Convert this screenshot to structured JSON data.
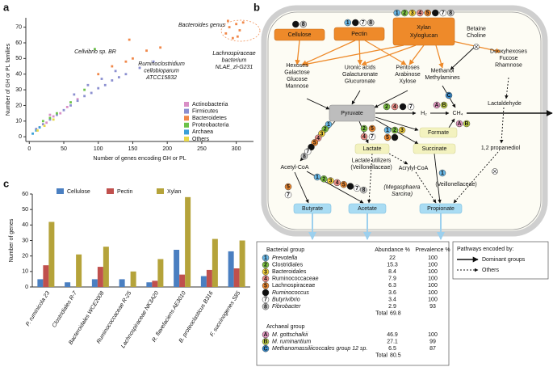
{
  "chart_data": [
    {
      "type": "scatter",
      "label": "a",
      "xlabel": "Number of genes encoding GH or PL",
      "ylabel": "Number of GH or PL families",
      "xlim": [
        -5,
        325
      ],
      "ylim": [
        -3,
        76
      ],
      "xticks": [
        0,
        50,
        100,
        150,
        200,
        250,
        300
      ],
      "yticks": [
        0,
        10,
        20,
        30,
        40,
        50,
        60,
        70
      ],
      "legend": "lower right",
      "series": [
        {
          "name": "Actinobacteria",
          "color": "#d98fc6",
          "x": [
            15,
            25,
            35,
            45,
            55,
            70,
            30
          ],
          "values": [
            6,
            9,
            13,
            15,
            19,
            24,
            14
          ]
        },
        {
          "name": "Firmicutes",
          "color": "#8b8fd0",
          "x": [
            10,
            20,
            30,
            40,
            50,
            60,
            70,
            80,
            90,
            100,
            110,
            120,
            130,
            140,
            160,
            180,
            65,
            85,
            105,
            125
          ],
          "values": [
            5,
            8,
            11,
            14,
            17,
            20,
            23,
            26,
            28,
            31,
            33,
            36,
            38,
            40,
            44,
            48,
            27,
            33,
            37,
            42
          ]
        },
        {
          "name": "Bacteroidetes",
          "color": "#f0884a",
          "x": [
            100,
            120,
            140,
            150,
            170,
            190,
            145,
            285,
            290,
            295,
            300,
            305,
            310,
            288,
            302
          ],
          "values": [
            40,
            45,
            48,
            50,
            55,
            57,
            62,
            66,
            70,
            63,
            72,
            68,
            73,
            74,
            64
          ]
        },
        {
          "name": "Proteobacteria",
          "color": "#6cc24a",
          "x": [
            20,
            30,
            40,
            60,
            80,
            95
          ],
          "values": [
            10,
            12,
            15,
            22,
            30,
            56
          ]
        },
        {
          "name": "Archaea",
          "color": "#3aa0d8",
          "x": [
            5,
            10,
            15
          ],
          "values": [
            2,
            4,
            6
          ]
        },
        {
          "name": "Others",
          "color": "#e8d84a",
          "x": [
            12,
            22,
            35
          ],
          "values": [
            4,
            7,
            11
          ]
        }
      ],
      "annotations": [
        {
          "lines": [
            "Bacteroides genus"
          ],
          "color": "#f0884a"
        },
        {
          "lines": [
            "Cellvibrio sp. BR"
          ],
          "color": "#6cc24a"
        },
        {
          "lines": [
            "Ruminoclostridium",
            "cellobioparum",
            "ATCC15832"
          ],
          "color": "#6cc24a"
        },
        {
          "lines": [
            "Lachnospiraceae",
            "bacterium",
            "NLAE_zl-G231"
          ],
          "color": "#3aa0d8"
        }
      ]
    },
    {
      "type": "bar",
      "label": "c",
      "ylabel": "Number of genes",
      "categories": [
        "P. ruminicola 23",
        "Clostridiales R-7",
        "Bacteroidales WCE2008",
        "Ruminococcaceae R-25",
        "Lachnospiraceae NK3A20",
        "R. flavefaciens AE3010",
        "B. proteoclasticus B316",
        "F. succinogenes S85"
      ],
      "series": [
        {
          "name": "Cellulose",
          "color": "#4a7fc1",
          "values": [
            5,
            3,
            5,
            5,
            3,
            24,
            7,
            23
          ]
        },
        {
          "name": "Pectin",
          "color": "#c0504d",
          "values": [
            14,
            0,
            13,
            0,
            4,
            8,
            11,
            12
          ]
        },
        {
          "name": "Xylan",
          "color": "#b5a33a",
          "values": [
            42,
            21,
            26,
            10,
            18,
            58,
            31,
            30
          ]
        }
      ],
      "ylim": [
        0,
        60
      ],
      "yticks": [
        0,
        10,
        20,
        30,
        40,
        50,
        60
      ],
      "legend": "top"
    }
  ],
  "diagram": {
    "label": "b",
    "badge_colors": {
      "1": "#6ab9e8",
      "2": "#7cc242",
      "3": "#f2d03b",
      "4": "#ef8f88",
      "5": "#f08a30",
      "6": "#111111",
      "7": "#ffffff",
      "8": "#c8c8c8",
      "A": "#e79ac4",
      "B": "#c8d84a",
      "C": "#3b8fd0"
    },
    "nodes": [
      {
        "lines": [
          "Cellulose"
        ],
        "badges": [
          "6",
          "8"
        ]
      },
      {
        "lines": [
          "Pectin"
        ],
        "badges": [
          "1",
          "6",
          "7",
          "8"
        ]
      },
      {
        "lines": [
          "Xylan",
          "Xyloglucan"
        ],
        "badges": [
          "1",
          "2",
          "3",
          "4",
          "5",
          "6",
          "7",
          "8"
        ]
      },
      {
        "lines": [
          "Betaine",
          "Choline"
        ]
      },
      {
        "lines": [
          "Hexoses",
          "Galactose",
          "Glucose",
          "Mannose"
        ]
      },
      {
        "lines": [
          "Uronic acids",
          "Galacturonate",
          "Glucuronate"
        ]
      },
      {
        "lines": [
          "Pentoses",
          "Arabinose",
          "Xylose"
        ]
      },
      {
        "lines": [
          "Methanol",
          "Methylamines"
        ]
      },
      {
        "lines": [
          "Deoxyhexoses",
          "Fucose",
          "Rhamnose"
        ]
      },
      {
        "lines": [
          "Pyruvate"
        ]
      },
      {
        "lines": [
          "H₂"
        ]
      },
      {
        "lines": [
          "CH₄"
        ]
      },
      {
        "lines": [
          "Formate"
        ]
      },
      {
        "lines": [
          "Lactate"
        ]
      },
      {
        "lines": [
          "Succinate"
        ]
      },
      {
        "lines": [
          "Lactaldehyde"
        ]
      },
      {
        "lines": [
          "1,2 propanediol"
        ]
      },
      {
        "lines": [
          "Acetyl-CoA"
        ]
      },
      {
        "lines": [
          "Lactate utilizers",
          "(Veillonellaceae)"
        ]
      },
      {
        "lines": [
          "Acrylyl-CoA"
        ]
      },
      {
        "lines": [
          "(Veillonellaceae)"
        ]
      },
      {
        "lines": [
          "(Megasphaera",
          "Sarcina)"
        ]
      },
      {
        "lines": [
          "Butyrate"
        ]
      },
      {
        "lines": [
          "Acetate"
        ]
      },
      {
        "lines": [
          "Propionate"
        ]
      }
    ],
    "badge_groups": [
      [
        "2",
        "4",
        "6",
        "7"
      ],
      [
        "A",
        "B"
      ],
      [
        "C"
      ],
      [
        "A",
        "B"
      ],
      [
        "2",
        "5",
        "4",
        "7"
      ],
      [
        "1",
        "2",
        "3",
        "5",
        "6"
      ],
      [
        "1",
        "2",
        "3",
        "4",
        "5",
        "6",
        "7",
        "8"
      ],
      [
        "5",
        "7"
      ],
      [
        "1",
        "2",
        "3",
        "4",
        "5",
        "6",
        "7",
        "8"
      ],
      [
        "1"
      ]
    ],
    "table": {
      "bacterial": {
        "header": [
          "Bacterial group",
          "Abundance %",
          "Prevalence %"
        ],
        "rows": [
          {
            "key": "1",
            "group": "Prevotella",
            "abundance": 22,
            "prevalence": 100
          },
          {
            "key": "2",
            "group": "Clostridiales",
            "abundance": 15.3,
            "prevalence": 100
          },
          {
            "key": "3",
            "group": "Bacteroidales",
            "abundance": 8.4,
            "prevalence": 100
          },
          {
            "key": "4",
            "group": "Ruminococcaceae",
            "abundance": 7.9,
            "prevalence": 100
          },
          {
            "key": "5",
            "group": "Lachnospiraceae",
            "abundance": 6.3,
            "prevalence": 100
          },
          {
            "key": "6",
            "group": "Ruminococcus",
            "abundance": 3.6,
            "prevalence": 100
          },
          {
            "key": "7",
            "group": "Butyrivibrio",
            "abundance": 3.4,
            "prevalence": 100
          },
          {
            "key": "8",
            "group": "Fibrobacter",
            "abundance": 2.9,
            "prevalence": 93
          }
        ],
        "total": {
          "label": "Total",
          "value": 69.8
        }
      },
      "archaeal": {
        "header": [
          "Archaeal group"
        ],
        "rows": [
          {
            "key": "A",
            "group": "M. gottschalkii",
            "abundance": 46.9,
            "prevalence": 100
          },
          {
            "key": "B",
            "group": "M. ruminantium",
            "abundance": 27.1,
            "prevalence": 99
          },
          {
            "key": "C",
            "group": "Methanomassiliicoccales group 12 sp.",
            "abundance": 6.5,
            "prevalence": 87
          }
        ],
        "total": {
          "label": "Total",
          "value": 80.5
        }
      }
    },
    "legend": {
      "title": "Pathways encoded by:",
      "items": [
        "Dominant groups",
        "Others"
      ]
    }
  }
}
